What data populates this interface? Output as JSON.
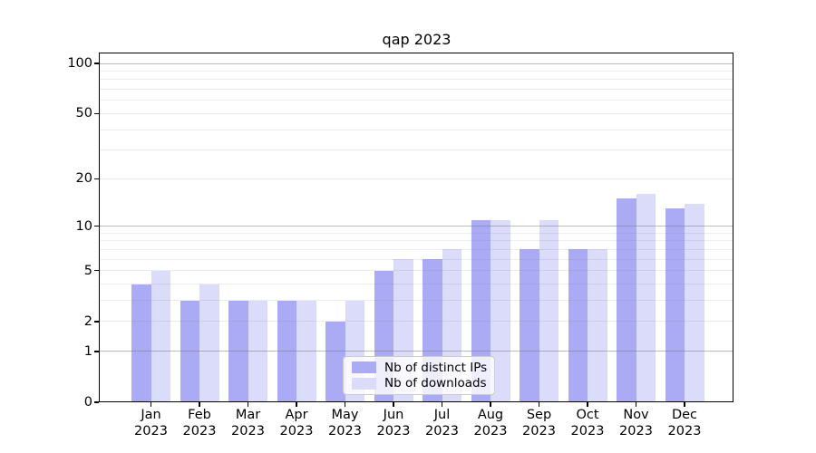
{
  "title": "qap 2023",
  "chart_data": {
    "type": "bar",
    "title": "qap 2023",
    "xlabel": "",
    "ylabel": "",
    "categories": [
      "Jan 2023",
      "Feb 2023",
      "Mar 2023",
      "Apr 2023",
      "May 2023",
      "Jun 2023",
      "Jul 2023",
      "Aug 2023",
      "Sep 2023",
      "Oct 2023",
      "Nov 2023",
      "Dec 2023"
    ],
    "series": [
      {
        "name": "Nb of distinct IPs",
        "color": "#aaaaf5",
        "values": [
          4,
          3,
          3,
          3,
          2,
          5,
          6,
          11,
          7,
          7,
          15,
          13
        ]
      },
      {
        "name": "Nb of downloads",
        "color": "#dbdbfa",
        "values": [
          5,
          4,
          3,
          3,
          3,
          6,
          7,
          11,
          11,
          7,
          16,
          14
        ]
      }
    ],
    "yscale": "log10(value+1)",
    "ylim": [
      0,
      115
    ],
    "y_ticks": [
      0,
      1,
      2,
      5,
      10,
      20,
      50,
      100
    ],
    "y_major_gridlines": [
      1,
      10,
      100
    ],
    "y_minor_gridlines": [
      2,
      3,
      4,
      5,
      6,
      7,
      8,
      9,
      20,
      30,
      40,
      50,
      60,
      70,
      80,
      90
    ],
    "grid": true,
    "legend_position": "lower center"
  },
  "legend": {
    "items": [
      {
        "label": "Nb of distinct IPs"
      },
      {
        "label": "Nb of downloads"
      }
    ]
  },
  "colors": {
    "background": "#ffffff",
    "bar_distinct_ips": "#aaaaf5",
    "bar_downloads": "#dbdbfa",
    "axis": "#000000",
    "major_grid": "#c3c3c3",
    "minor_grid": "#e9e9e9",
    "legend_border": "#cccccc"
  }
}
